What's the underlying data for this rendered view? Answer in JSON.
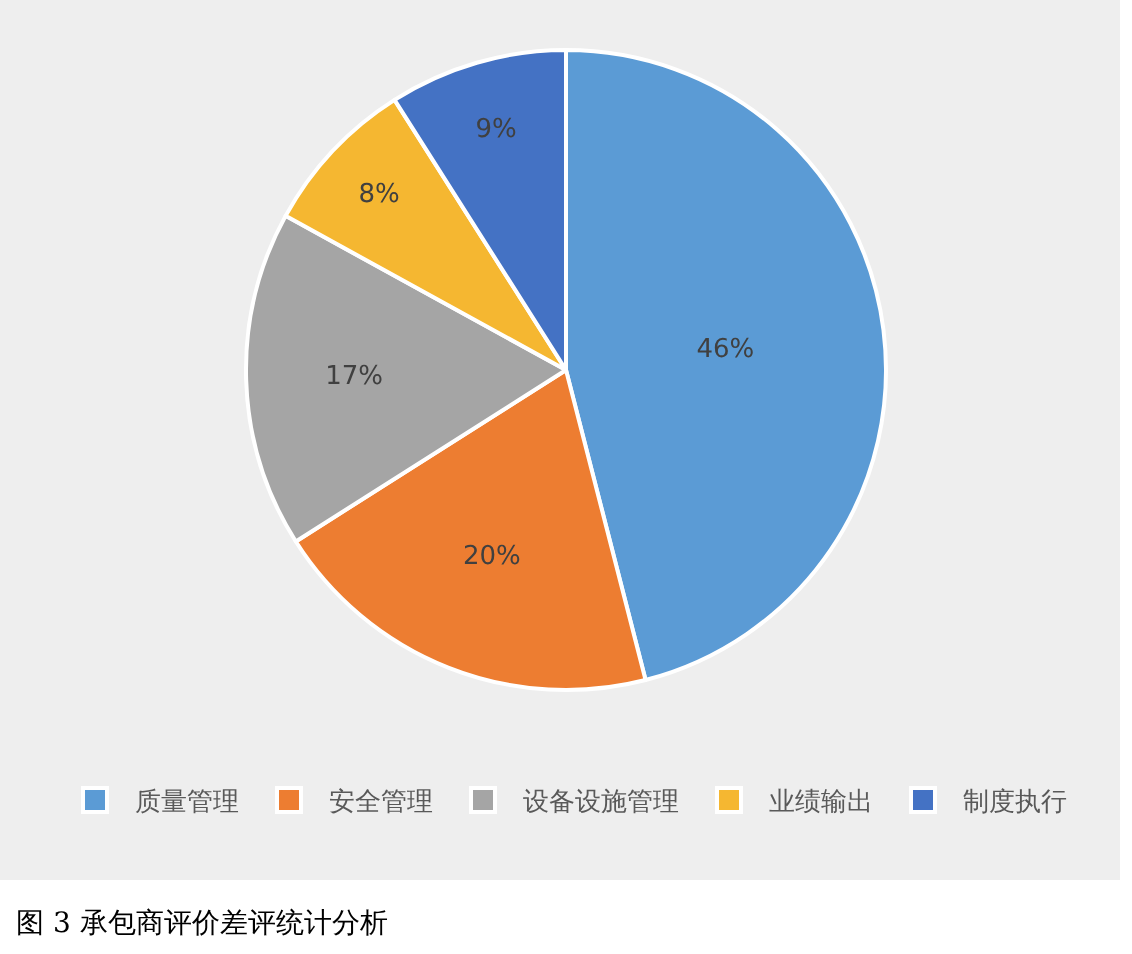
{
  "chart_data": {
    "type": "pie",
    "categories": [
      "质量管理",
      "安全管理",
      "设备设施管理",
      "业绩输出",
      "制度执行"
    ],
    "values": [
      46,
      20,
      17,
      8,
      9
    ],
    "value_labels": [
      "46%",
      "20%",
      "17%",
      "8%",
      "9%"
    ],
    "colors": [
      "#5b9bd5",
      "#ed7d31",
      "#a5a5a5",
      "#f5b731",
      "#4472c4"
    ],
    "legend": "bottom",
    "annotations": [
      "图 3 承包商评价差评统计分析"
    ]
  }
}
